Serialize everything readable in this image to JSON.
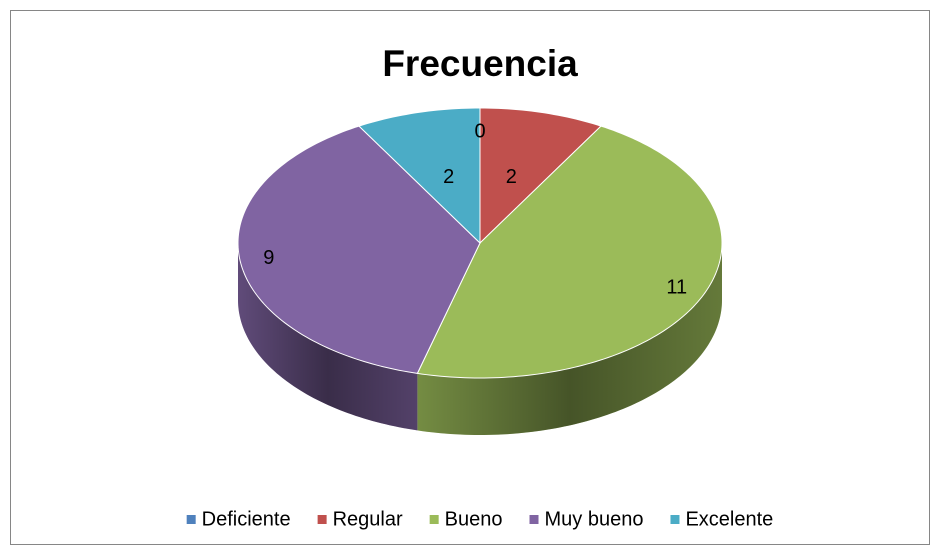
{
  "chart_data": {
    "type": "pie",
    "title": "Frecuencia",
    "categories": [
      "Deficiente",
      "Regular",
      "Bueno",
      "Muy bueno",
      "Excelente"
    ],
    "values": [
      0,
      2,
      11,
      9,
      2
    ],
    "colors": [
      "#4f81bd",
      "#c0504d",
      "#9bbb59",
      "#8064a2",
      "#4bacc6"
    ],
    "legend": "bottom"
  }
}
